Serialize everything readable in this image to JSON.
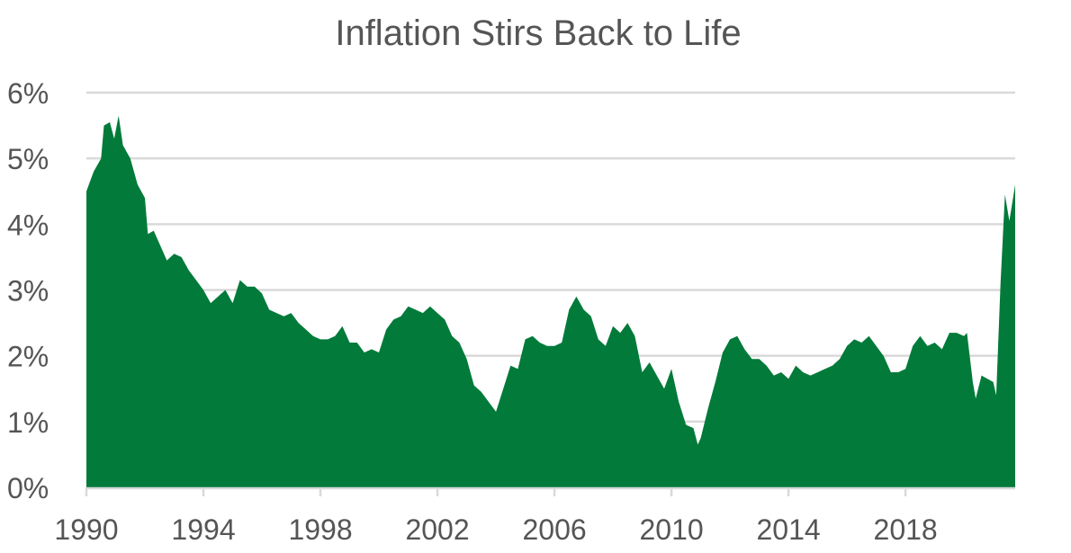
{
  "chart_data": {
    "type": "area",
    "title": "Inflation Stirs Back to Life",
    "xlabel": "",
    "ylabel": "",
    "xlim": [
      1990,
      2021.75
    ],
    "ylim": [
      0,
      6
    ],
    "x_ticks": [
      1990,
      1994,
      1998,
      2002,
      2006,
      2010,
      2014,
      2018
    ],
    "x_tick_labels": [
      "1990",
      "1994",
      "1998",
      "2002",
      "2006",
      "2010",
      "2014",
      "2018"
    ],
    "y_ticks": [
      0,
      1,
      2,
      3,
      4,
      5,
      6
    ],
    "y_tick_labels": [
      "0%",
      "1%",
      "2%",
      "3%",
      "4%",
      "5%",
      "6%"
    ],
    "grid": true,
    "color": "#027a3a",
    "series": [
      {
        "x": [
          1990.0,
          1990.25,
          1990.5,
          1990.6,
          1990.8,
          1990.95,
          1991.1,
          1991.25,
          1991.5,
          1991.75,
          1992.0,
          1992.1,
          1992.3,
          1992.5,
          1992.75,
          1993.0,
          1993.25,
          1993.5,
          1993.75,
          1994.0,
          1994.25,
          1994.5,
          1994.75,
          1995.0,
          1995.25,
          1995.5,
          1995.75,
          1996.0,
          1996.25,
          1996.5,
          1996.75,
          1997.0,
          1997.25,
          1997.5,
          1997.75,
          1998.0,
          1998.25,
          1998.5,
          1998.75,
          1999.0,
          1999.25,
          1999.5,
          1999.75,
          2000.0,
          2000.25,
          2000.5,
          2000.75,
          2001.0,
          2001.25,
          2001.5,
          2001.75,
          2002.0,
          2002.25,
          2002.5,
          2002.75,
          2003.0,
          2003.25,
          2003.5,
          2003.75,
          2004.0,
          2004.25,
          2004.5,
          2004.75,
          2005.0,
          2005.25,
          2005.5,
          2005.75,
          2006.0,
          2006.25,
          2006.5,
          2006.75,
          2007.0,
          2007.25,
          2007.5,
          2007.75,
          2008.0,
          2008.25,
          2008.5,
          2008.75,
          2009.0,
          2009.25,
          2009.5,
          2009.75,
          2010.0,
          2010.25,
          2010.5,
          2010.75,
          2010.9,
          2011.0,
          2011.25,
          2011.5,
          2011.75,
          2012.0,
          2012.25,
          2012.5,
          2012.75,
          2013.0,
          2013.25,
          2013.5,
          2013.75,
          2014.0,
          2014.25,
          2014.5,
          2014.75,
          2015.0,
          2015.25,
          2015.5,
          2015.75,
          2016.0,
          2016.25,
          2016.5,
          2016.75,
          2017.0,
          2017.25,
          2017.5,
          2017.75,
          2018.0,
          2018.25,
          2018.5,
          2018.75,
          2019.0,
          2019.25,
          2019.5,
          2019.75,
          2020.0,
          2020.1,
          2020.3,
          2020.4,
          2020.6,
          2020.8,
          2021.0,
          2021.1,
          2021.25,
          2021.4,
          2021.55,
          2021.75
        ],
        "values": [
          4.5,
          4.8,
          5.0,
          5.5,
          5.55,
          5.3,
          5.65,
          5.2,
          5.0,
          4.6,
          4.4,
          3.85,
          3.9,
          3.7,
          3.45,
          3.55,
          3.5,
          3.3,
          3.15,
          3.0,
          2.8,
          2.9,
          3.0,
          2.8,
          3.15,
          3.05,
          3.05,
          2.95,
          2.7,
          2.65,
          2.6,
          2.65,
          2.5,
          2.4,
          2.3,
          2.25,
          2.25,
          2.3,
          2.45,
          2.2,
          2.2,
          2.05,
          2.1,
          2.05,
          2.4,
          2.55,
          2.6,
          2.75,
          2.7,
          2.65,
          2.75,
          2.65,
          2.55,
          2.3,
          2.2,
          1.95,
          1.55,
          1.45,
          1.3,
          1.15,
          1.5,
          1.85,
          1.8,
          2.25,
          2.3,
          2.2,
          2.15,
          2.15,
          2.2,
          2.7,
          2.9,
          2.7,
          2.6,
          2.25,
          2.15,
          2.45,
          2.35,
          2.5,
          2.3,
          1.75,
          1.9,
          1.7,
          1.5,
          1.8,
          1.3,
          0.95,
          0.9,
          0.65,
          0.75,
          1.2,
          1.6,
          2.05,
          2.25,
          2.3,
          2.1,
          1.95,
          1.95,
          1.85,
          1.7,
          1.75,
          1.65,
          1.85,
          1.75,
          1.7,
          1.75,
          1.8,
          1.85,
          1.95,
          2.15,
          2.25,
          2.2,
          2.3,
          2.15,
          2.0,
          1.75,
          1.75,
          1.8,
          2.15,
          2.3,
          2.15,
          2.2,
          2.1,
          2.35,
          2.35,
          2.3,
          2.35,
          1.6,
          1.35,
          1.7,
          1.65,
          1.6,
          1.4,
          3.1,
          4.45,
          4.05,
          4.6
        ]
      }
    ]
  }
}
